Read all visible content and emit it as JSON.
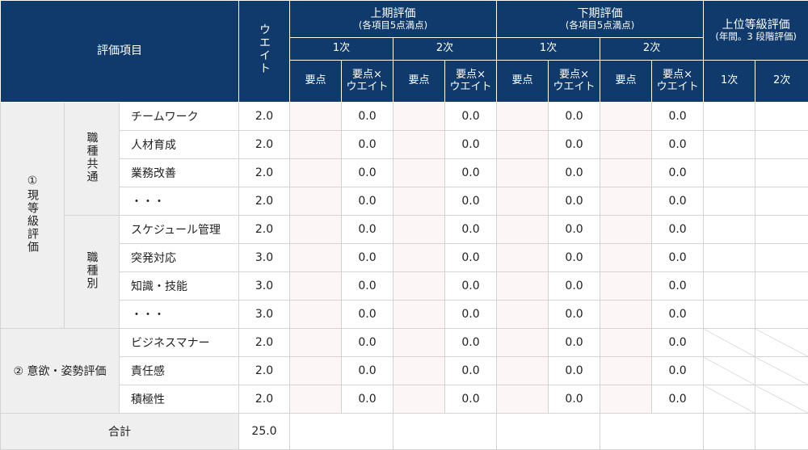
{
  "header": {
    "item_label": "評価項目",
    "weight_label": "ウエイト",
    "first_half": {
      "title": "上期評価",
      "note": "(各項目5点満点)"
    },
    "second_half": {
      "title": "下期評価",
      "note": "(各項目5点満点)"
    },
    "upper": {
      "title": "上位等級評価",
      "note": "(年間。3 段階評価)"
    },
    "round1": "1次",
    "round2": "2次",
    "point": "要点",
    "point_weight_1": "要点×",
    "point_weight_2": "ウエイト"
  },
  "groups": {
    "current_grade": "①現等級評価",
    "common": "職種共通",
    "specific": "職種別",
    "attitude": "② 意欲・姿勢評価"
  },
  "rows": [
    {
      "item": "チームワーク",
      "weight": "2.0",
      "v1": "0.0",
      "v2": "0.0",
      "v3": "0.0",
      "v4": "0.0"
    },
    {
      "item": "人材育成",
      "weight": "2.0",
      "v1": "0.0",
      "v2": "0.0",
      "v3": "0.0",
      "v4": "0.0"
    },
    {
      "item": "業務改善",
      "weight": "2.0",
      "v1": "0.0",
      "v2": "0.0",
      "v3": "0.0",
      "v4": "0.0"
    },
    {
      "item": "・・・",
      "weight": "2.0",
      "v1": "0.0",
      "v2": "0.0",
      "v3": "0.0",
      "v4": "0.0"
    },
    {
      "item": "スケジュール管理",
      "weight": "2.0",
      "v1": "0.0",
      "v2": "0.0",
      "v3": "0.0",
      "v4": "0.0"
    },
    {
      "item": "突発対応",
      "weight": "3.0",
      "v1": "0.0",
      "v2": "0.0",
      "v3": "0.0",
      "v4": "0.0"
    },
    {
      "item": "知識・技能",
      "weight": "3.0",
      "v1": "0.0",
      "v2": "0.0",
      "v3": "0.0",
      "v4": "0.0"
    },
    {
      "item": "・・・",
      "weight": "3.0",
      "v1": "0.0",
      "v2": "0.0",
      "v3": "0.0",
      "v4": "0.0"
    },
    {
      "item": "ビジネスマナー",
      "weight": "2.0",
      "v1": "0.0",
      "v2": "0.0",
      "v3": "0.0",
      "v4": "0.0"
    },
    {
      "item": "責任感",
      "weight": "2.0",
      "v1": "0.0",
      "v2": "0.0",
      "v3": "0.0",
      "v4": "0.0"
    },
    {
      "item": "積極性",
      "weight": "2.0",
      "v1": "0.0",
      "v2": "0.0",
      "v3": "0.0",
      "v4": "0.0"
    }
  ],
  "total": {
    "label": "合計",
    "weight": "25.0"
  },
  "colors": {
    "header_bg": "#0f3a6b",
    "group_bg": "#efefef",
    "point_cell_bg": "#fdf6f7"
  }
}
